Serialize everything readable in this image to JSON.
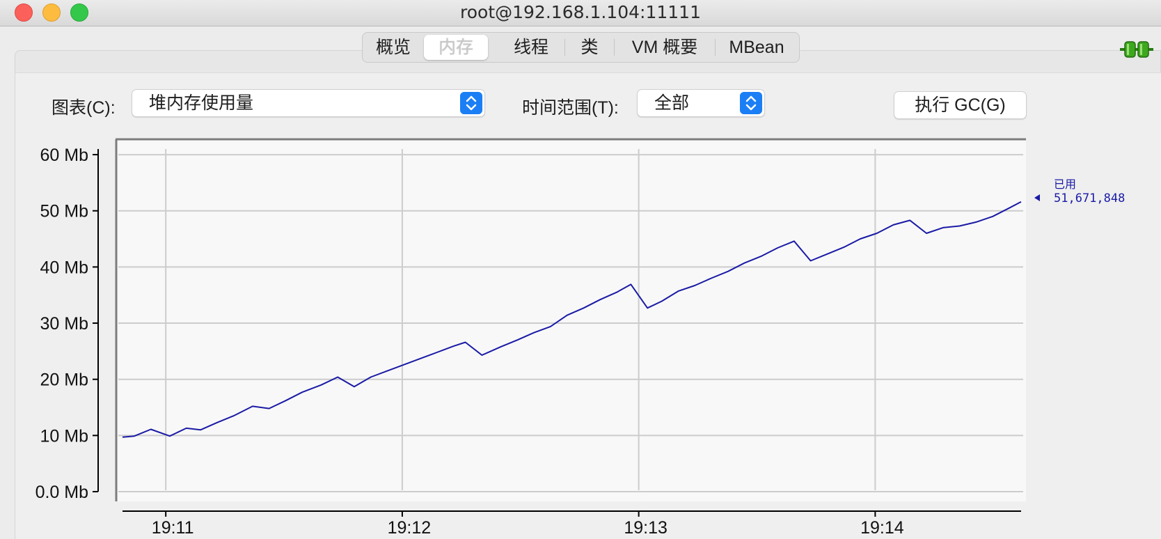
{
  "window": {
    "title": "root@192.168.1.104:11111"
  },
  "tabs": [
    {
      "label": "概览"
    },
    {
      "label": "内存",
      "selected": true
    },
    {
      "label": "线程"
    },
    {
      "label": "类"
    },
    {
      "label": "VM 概要"
    },
    {
      "label": "MBean"
    }
  ],
  "controls": {
    "chart_label": "图表(C):",
    "chart_value": "堆内存使用量",
    "time_range_label": "时间范围(T):",
    "time_range_value": "全部",
    "gc_button_label": "执行 GC(G)"
  },
  "colors": {
    "series": "#1a1aa6",
    "accent": "#1b7ef5",
    "grid": "#cccccc"
  },
  "chart_data": {
    "type": "line",
    "title": "",
    "xlabel": "",
    "ylabel": "",
    "y_tick_labels": [
      "0.0 Mb",
      "10 Mb",
      "20 Mb",
      "30 Mb",
      "40 Mb",
      "50 Mb",
      "60 Mb"
    ],
    "y_ticks": [
      0,
      10,
      20,
      30,
      40,
      50,
      60
    ],
    "ylim": [
      0,
      61
    ],
    "x_tick_labels": [
      "19:11",
      "19:12",
      "19:13",
      "19:14"
    ],
    "x_ticks": [
      19.183,
      20.183,
      21.183,
      22.183
    ],
    "xlim": [
      19.0,
      22.8
    ],
    "series": [
      {
        "name": "已用",
        "current_value": "51,671,848",
        "points": [
          [
            19.0,
            9.7
          ],
          [
            19.05,
            9.9
          ],
          [
            19.12,
            11.1
          ],
          [
            19.2,
            9.9
          ],
          [
            19.27,
            11.3
          ],
          [
            19.33,
            11.0
          ],
          [
            19.4,
            12.3
          ],
          [
            19.47,
            13.5
          ],
          [
            19.55,
            15.2
          ],
          [
            19.62,
            14.8
          ],
          [
            19.69,
            16.2
          ],
          [
            19.76,
            17.7
          ],
          [
            19.84,
            19.0
          ],
          [
            19.91,
            20.4
          ],
          [
            19.98,
            18.7
          ],
          [
            20.05,
            20.4
          ],
          [
            20.12,
            21.5
          ],
          [
            20.19,
            22.6
          ],
          [
            20.26,
            23.7
          ],
          [
            20.33,
            24.8
          ],
          [
            20.4,
            25.9
          ],
          [
            20.45,
            26.6
          ],
          [
            20.52,
            24.3
          ],
          [
            20.6,
            25.8
          ],
          [
            20.67,
            27.0
          ],
          [
            20.74,
            28.3
          ],
          [
            20.81,
            29.4
          ],
          [
            20.88,
            31.4
          ],
          [
            20.95,
            32.7
          ],
          [
            21.02,
            34.2
          ],
          [
            21.09,
            35.5
          ],
          [
            21.15,
            36.9
          ],
          [
            21.22,
            32.7
          ],
          [
            21.28,
            33.9
          ],
          [
            21.35,
            35.7
          ],
          [
            21.42,
            36.7
          ],
          [
            21.49,
            38.0
          ],
          [
            21.56,
            39.2
          ],
          [
            21.63,
            40.7
          ],
          [
            21.7,
            41.9
          ],
          [
            21.77,
            43.4
          ],
          [
            21.84,
            44.6
          ],
          [
            21.91,
            41.1
          ],
          [
            21.98,
            42.3
          ],
          [
            22.05,
            43.5
          ],
          [
            22.12,
            45.0
          ],
          [
            22.19,
            46.0
          ],
          [
            22.26,
            47.5
          ],
          [
            22.33,
            48.3
          ],
          [
            22.4,
            46.0
          ],
          [
            22.47,
            47.0
          ],
          [
            22.54,
            47.3
          ],
          [
            22.61,
            48.0
          ],
          [
            22.68,
            49.0
          ],
          [
            22.75,
            50.5
          ],
          [
            22.8,
            51.6
          ]
        ]
      }
    ],
    "legend_position": "right",
    "grid": true
  }
}
